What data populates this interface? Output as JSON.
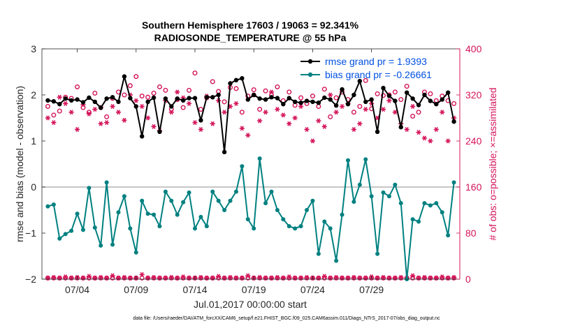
{
  "colors": {
    "rmse": "#000000",
    "bias": "#008080",
    "obs": "#d4145a",
    "legend_text": "#0050e0",
    "zero_line": "#b4b4b4"
  },
  "chart_data": {
    "type": "line",
    "title_line1": "Southern Hemisphere 17603 / 19063 = 92.341%",
    "title_line2": "RADIOSONDE_TEMPERATURE @ 55 hPa",
    "xlabel": "Jul.01,2017 00:00:00 start",
    "ylabel_left": "rmse and bias (model - observation)",
    "ylabel_right": "# of obs: o=possible; ×=assimilated",
    "footer": "data file: /Users/raeder/DAI/ATM_forcXX/CAM6_setup/f.e21.FHIST_BGC.f09_025.CAM6assim.011/Diags_NTrS_2017-07/obs_diag_output.nc",
    "xlim": [
      0,
      35.5
    ],
    "ylim_left": [
      -2,
      3
    ],
    "ylim_right": [
      0,
      400
    ],
    "xticks": [
      3,
      8,
      13,
      18,
      23,
      28
    ],
    "xtick_labels": [
      "07/04",
      "07/09",
      "07/14",
      "07/19",
      "07/24",
      "07/29"
    ],
    "yticks_left": [
      -2,
      -1,
      0,
      1,
      2,
      3
    ],
    "ytick_labels_left": [
      "−2",
      "−1",
      "0",
      "1",
      "2",
      "3"
    ],
    "yticks_right": [
      0,
      80,
      160,
      240,
      320,
      400
    ],
    "ytick_labels_right": [
      "0",
      "80",
      "160",
      "240",
      "320",
      "400"
    ],
    "x": [
      0.5,
      1.0,
      1.5,
      2.0,
      2.5,
      3.0,
      3.5,
      4.0,
      4.5,
      5.0,
      5.5,
      6.0,
      6.5,
      7.0,
      7.5,
      8.0,
      8.5,
      9.0,
      9.5,
      10.0,
      10.5,
      11.0,
      11.5,
      12.0,
      12.5,
      13.0,
      13.5,
      14.0,
      14.5,
      15.0,
      15.5,
      16.0,
      16.5,
      17.0,
      17.5,
      18.0,
      18.5,
      19.0,
      19.5,
      20.0,
      20.5,
      21.0,
      21.5,
      22.0,
      22.5,
      23.0,
      23.5,
      24.0,
      24.5,
      25.0,
      25.5,
      26.0,
      26.5,
      27.0,
      27.5,
      28.0,
      28.5,
      29.0,
      29.5,
      30.0,
      30.5,
      31.0,
      31.5,
      32.0,
      32.5,
      33.0,
      33.5,
      34.0,
      34.5,
      35.0
    ],
    "series": [
      {
        "name": "rmse",
        "legend": "rmse grand pr = 1.9393",
        "values": [
          1.88,
          1.86,
          1.8,
          1.92,
          1.88,
          1.9,
          1.84,
          1.94,
          1.85,
          1.72,
          1.92,
          1.95,
          1.85,
          2.4,
          1.93,
          1.75,
          1.1,
          1.85,
          1.94,
          1.2,
          1.92,
          1.75,
          1.92,
          1.88,
          1.93,
          1.93,
          1.45,
          1.95,
          1.95,
          2.0,
          0.76,
          2.25,
          2.32,
          2.36,
          1.9,
          2.0,
          1.92,
          1.9,
          1.95,
          1.93,
          1.8,
          1.93,
          1.85,
          1.83,
          1.87,
          1.85,
          1.83,
          1.94,
          1.9,
          1.77,
          2.12,
          1.8,
          2.0,
          2.3,
          1.85,
          1.9,
          1.2,
          2.15,
          1.98,
          1.87,
          1.3,
          2.05,
          1.92,
          1.78,
          2.0,
          1.87,
          1.8,
          1.9,
          2.05,
          1.42
        ]
      },
      {
        "name": "bias",
        "legend": "bias grand pr = -0.26661",
        "values": [
          -0.42,
          -0.38,
          -1.12,
          -1.02,
          -0.95,
          -0.58,
          -0.93,
          -0.02,
          -0.88,
          -1.27,
          0.1,
          -1.25,
          -0.55,
          -0.2,
          -0.9,
          -1.42,
          -0.3,
          -0.58,
          -0.6,
          -0.85,
          -0.1,
          -0.3,
          -0.6,
          -0.33,
          -0.12,
          -0.9,
          -0.65,
          -0.85,
          -0.1,
          -0.3,
          -0.5,
          -0.3,
          -0.1,
          0.45,
          -0.7,
          -0.9,
          0.62,
          -0.35,
          -0.1,
          -0.5,
          -0.7,
          -0.85,
          -0.9,
          -0.85,
          -0.5,
          -0.3,
          -1.45,
          -0.75,
          -0.9,
          -1.6,
          -0.6,
          0.58,
          -0.32,
          0.05,
          0.6,
          -0.2,
          -1.45,
          -0.12,
          -0.2,
          0.05,
          -0.35,
          -2.0,
          -0.7,
          -0.75,
          -0.35,
          -0.4,
          -0.35,
          -0.55,
          -1.05,
          0.1
        ]
      },
      {
        "name": "obs_possible",
        "values": [
          300,
          285,
          292,
          316,
          314,
          334,
          298,
          290,
          323,
          298,
          282,
          314,
          325,
          320,
          336,
          352,
          318,
          316,
          323,
          334,
          328,
          295,
          312,
          298,
          328,
          358,
          295,
          315,
          343,
          326,
          308,
          333,
          331,
          290,
          318,
          329,
          295,
          327,
          320,
          334,
          310,
          325,
          302,
          315,
          305,
          318,
          300,
          330,
          282,
          315,
          325,
          312,
          290,
          300,
          345,
          296,
          322,
          319,
          320,
          325,
          312,
          335,
          283,
          290,
          325,
          322,
          310,
          318,
          310,
          305
        ]
      },
      {
        "name": "obs_assimilated",
        "values": [
          280,
          272,
          316,
          305,
          290,
          260,
          303,
          287,
          295,
          270,
          272,
          300,
          290,
          276,
          320,
          310,
          300,
          280,
          265,
          258,
          310,
          290,
          325,
          315,
          305,
          272,
          260,
          318,
          270,
          310,
          290,
          300,
          305,
          262,
          250,
          320,
          275,
          290,
          325,
          295,
          285,
          270,
          280,
          300,
          260,
          240,
          275,
          265,
          320,
          290,
          300,
          305,
          260,
          270,
          295,
          305,
          280,
          295,
          310,
          290,
          270,
          260,
          300,
          255,
          245,
          240,
          260,
          290,
          240,
          280
        ]
      },
      {
        "name": "obs_zero_possible",
        "values": [
          2,
          2,
          2,
          2,
          2,
          2,
          2,
          2,
          2,
          2,
          2,
          2,
          2,
          2,
          2,
          2,
          2,
          2,
          2,
          2,
          2,
          2,
          2,
          2,
          2,
          2,
          2,
          2,
          2,
          2,
          2,
          2,
          2,
          2,
          2,
          2,
          2,
          2,
          2,
          2,
          2,
          2,
          2,
          2,
          2,
          2,
          2,
          2,
          2,
          2,
          2,
          2,
          2,
          2,
          2,
          2,
          2,
          2,
          2,
          2,
          2,
          2,
          2,
          2,
          2,
          2,
          2,
          2,
          2,
          2
        ]
      },
      {
        "name": "obs_zero_assimilated",
        "values": [
          2,
          3,
          2,
          4,
          2,
          3,
          2,
          5,
          2,
          3,
          2,
          6,
          2,
          3,
          2,
          2,
          8,
          2,
          3,
          2,
          2,
          3,
          2,
          4,
          2,
          2,
          3,
          2,
          2,
          5,
          2,
          3,
          2,
          2,
          6,
          2,
          3,
          2,
          2,
          3,
          2,
          4,
          2,
          2,
          3,
          2,
          2,
          5,
          2,
          3,
          2,
          2,
          3,
          2,
          2,
          4,
          2,
          3,
          2,
          2,
          3,
          2,
          6,
          2,
          3,
          2,
          2,
          4,
          2,
          3
        ]
      }
    ]
  }
}
